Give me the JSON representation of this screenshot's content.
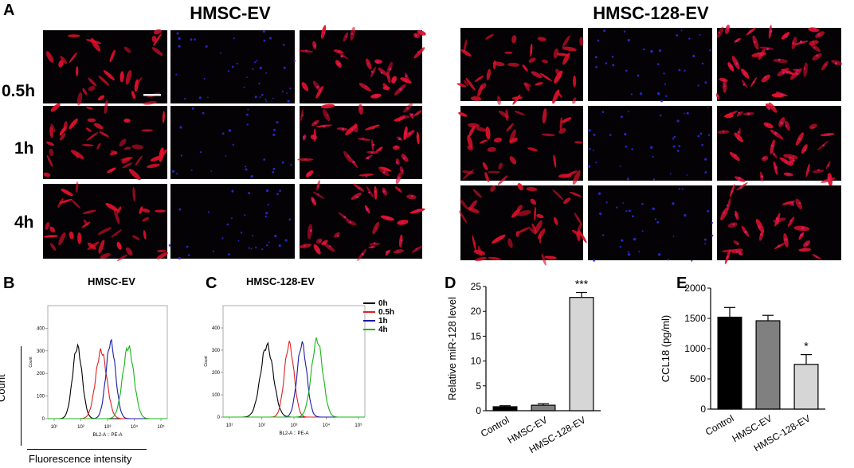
{
  "panel_a": {
    "letter": "A",
    "groups": [
      {
        "title": "HMSC-EV"
      },
      {
        "title": "HMSC-128-EV"
      }
    ],
    "rows": [
      {
        "label": "0.5h"
      },
      {
        "label": "1h"
      },
      {
        "label": "4h"
      }
    ],
    "channels": [
      "red",
      "blue",
      "merge"
    ],
    "colors": {
      "red": "#e0102a",
      "blue": "#2a2ad8",
      "merge_magenta": "#c8208a",
      "background": "#050206"
    }
  },
  "panel_b": {
    "letter": "B",
    "title": "HMSC-EV",
    "y_axis_label": "Count",
    "x_axis_label": "Fluorescence intensity",
    "inner_y_label": "Count",
    "inner_x_label": "BL2-A :: PE-A",
    "y_ticks": [
      "0",
      "100",
      "200",
      "300",
      "400"
    ],
    "x_ticks": [
      "10¹",
      "10²",
      "10³",
      "10⁴",
      "10⁵"
    ]
  },
  "panel_c": {
    "letter": "C",
    "title": "HMSC-128-EV",
    "inner_y_label": "Count",
    "inner_x_label": "BL2-A :: PE-A",
    "y_ticks": [
      "0",
      "100",
      "200",
      "300",
      "400"
    ],
    "x_ticks": [
      "10¹",
      "10²",
      "10³",
      "10⁴",
      "10⁵"
    ],
    "legend": [
      {
        "label": "0h",
        "color": "#000000"
      },
      {
        "label": "0.5h",
        "color": "#e02020"
      },
      {
        "label": "1h",
        "color": "#1a1aa8"
      },
      {
        "label": "4h",
        "color": "#18b418"
      }
    ]
  },
  "chart_data": [
    {
      "type": "bar",
      "panel": "D",
      "title": "",
      "categories": [
        "Control",
        "HMSC-EV",
        "HMSC-128-EV"
      ],
      "values": [
        0.8,
        1.1,
        22.8
      ],
      "errors": [
        0.2,
        0.3,
        1.0
      ],
      "bar_colors": [
        "#000000",
        "#808080",
        "#d6d6d6"
      ],
      "annotations": [
        "",
        "",
        "***"
      ],
      "ylabel": "Relative miR-128 level",
      "xlabel": "",
      "ylim": [
        0,
        25
      ],
      "yticks": [
        0,
        5,
        10,
        15,
        20,
        25
      ],
      "grid": false
    },
    {
      "type": "bar",
      "panel": "E",
      "title": "",
      "categories": [
        "Control",
        "HMSC-EV",
        "HMSC-128-EV"
      ],
      "values": [
        1520,
        1460,
        740
      ],
      "errors": [
        160,
        90,
        160
      ],
      "bar_colors": [
        "#000000",
        "#808080",
        "#d6d6d6"
      ],
      "annotations": [
        "",
        "",
        "*"
      ],
      "ylabel": "CCL18 (pg/ml)",
      "xlabel": "",
      "ylim": [
        0,
        2000
      ],
      "yticks": [
        0,
        500,
        1000,
        1500,
        2000
      ],
      "grid": false
    }
  ]
}
